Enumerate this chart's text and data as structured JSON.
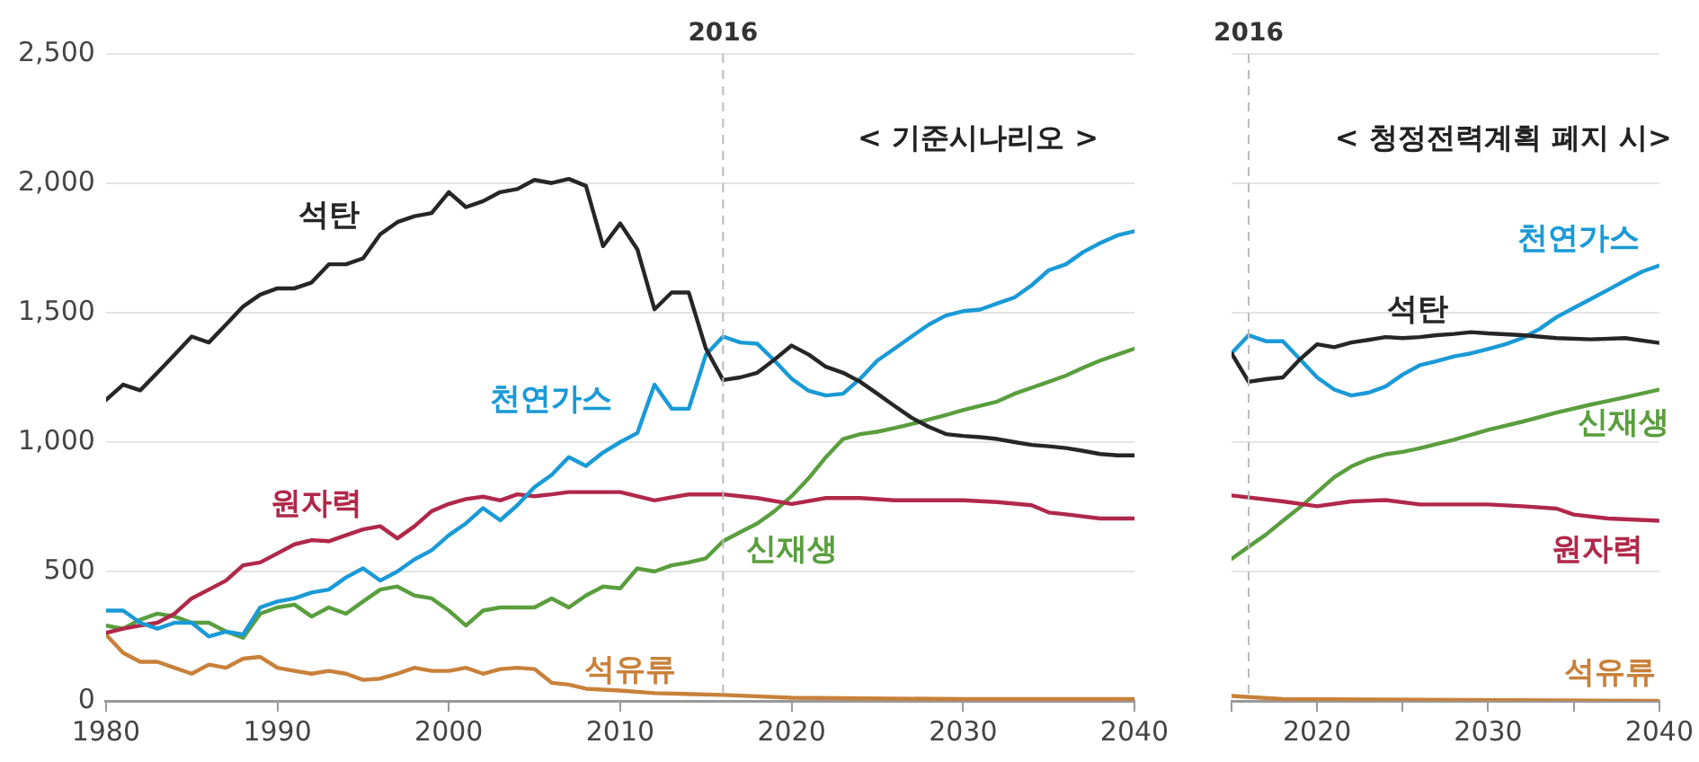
{
  "chart_data": [
    {
      "type": "line",
      "title": "< 기준시나리오 >",
      "marker": "none",
      "line_style": "solid",
      "grid": "y",
      "legend": false,
      "xlim": [
        1980,
        2040
      ],
      "xticks": [
        1980,
        1990,
        2000,
        2010,
        2020,
        2030,
        2040
      ],
      "ylim": [
        0,
        2500
      ],
      "yticks": [
        0,
        500,
        {
          "value": 1000,
          "label": "1,000"
        },
        {
          "value": 1500,
          "label": "1,500"
        },
        {
          "value": 2000,
          "label": "2,000"
        },
        {
          "value": 2500,
          "label": "2,500"
        }
      ],
      "ref_lines": [
        {
          "axis": "x",
          "value": 2016,
          "label": "2016",
          "color": "#bbbbbb",
          "line_style": "dashed"
        }
      ],
      "series": [
        {
          "name": "석탄",
          "color": "#262626",
          "x": [
            1980,
            1981,
            1982,
            1983,
            1984,
            1985,
            1986,
            1987,
            1988,
            1989,
            1990,
            1991,
            1992,
            1993,
            1994,
            1995,
            1996,
            1997,
            1998,
            1999,
            2000,
            2001,
            2002,
            2003,
            2004,
            2005,
            2006,
            2007,
            2008,
            2009,
            2010,
            2011,
            2012,
            2013,
            2014,
            2015,
            2016,
            2017,
            2018,
            2019,
            2020,
            2021,
            2022,
            2023,
            2024,
            2025,
            2026,
            2027,
            2028,
            2029,
            2030,
            2031,
            2032,
            2033,
            2034,
            2035,
            2036,
            2037,
            2038,
            2039,
            2040
          ],
          "values": [
            1163,
            1222,
            1200,
            1268,
            1338,
            1408,
            1385,
            1454,
            1524,
            1570,
            1594,
            1594,
            1617,
            1687,
            1687,
            1710,
            1803,
            1850,
            1873,
            1885,
            1966,
            1908,
            1931,
            1966,
            1978,
            2013,
            2001,
            2017,
            1990,
            1757,
            1845,
            1745,
            1513,
            1578,
            1578,
            1361,
            1240,
            1250,
            1268,
            1319,
            1373,
            1338,
            1291,
            1268,
            1233,
            1187,
            1140,
            1094,
            1059,
            1031,
            1024,
            1019,
            1012,
            1000,
            989,
            984,
            977,
            966,
            954,
            949,
            949
          ]
        },
        {
          "name": "천연가스",
          "color": "#1a9ad6",
          "x": [
            1980,
            1981,
            1982,
            1983,
            1984,
            1985,
            1986,
            1987,
            1988,
            1989,
            1990,
            1991,
            1992,
            1993,
            1994,
            1995,
            1996,
            1997,
            1998,
            1999,
            2000,
            2001,
            2002,
            2003,
            2004,
            2005,
            2006,
            2007,
            2008,
            2009,
            2010,
            2011,
            2012,
            2013,
            2014,
            2015,
            2016,
            2017,
            2018,
            2019,
            2020,
            2021,
            2022,
            2023,
            2024,
            2025,
            2026,
            2027,
            2028,
            2029,
            2030,
            2031,
            2032,
            2033,
            2034,
            2035,
            2036,
            2037,
            2038,
            2039,
            2040
          ],
          "values": [
            349,
            349,
            302,
            279,
            302,
            302,
            249,
            268,
            256,
            361,
            384,
            396,
            419,
            430,
            477,
            512,
            465,
            500,
            547,
            582,
            640,
            686,
            745,
            698,
            756,
            826,
            873,
            942,
            908,
            960,
            1000,
            1035,
            1222,
            1129,
            1129,
            1338,
            1408,
            1385,
            1380,
            1315,
            1245,
            1198,
            1180,
            1187,
            1245,
            1315,
            1361,
            1408,
            1454,
            1489,
            1506,
            1512,
            1536,
            1559,
            1606,
            1664,
            1687,
            1734,
            1769,
            1799,
            1815
          ]
        },
        {
          "name": "원자력",
          "color": "#b0284a",
          "x": [
            1980,
            1981,
            1982,
            1983,
            1984,
            1985,
            1986,
            1987,
            1988,
            1989,
            1990,
            1991,
            1992,
            1993,
            1994,
            1995,
            1996,
            1997,
            1998,
            1999,
            2000,
            2001,
            2002,
            2003,
            2004,
            2005,
            2006,
            2007,
            2008,
            2010,
            2012,
            2014,
            2016,
            2018,
            2020,
            2022,
            2024,
            2026,
            2028,
            2030,
            2032,
            2034,
            2035,
            2036,
            2038,
            2040
          ],
          "values": [
            263,
            279,
            291,
            302,
            337,
            396,
            430,
            465,
            524,
            535,
            570,
            605,
            621,
            617,
            640,
            663,
            675,
            628,
            675,
            733,
            761,
            780,
            789,
            775,
            798,
            791,
            798,
            807,
            807,
            807,
            775,
            798,
            798,
            784,
            761,
            784,
            784,
            775,
            775,
            775,
            768,
            756,
            728,
            721,
            705,
            705
          ]
        },
        {
          "name": "신재생",
          "color": "#5a9e3e",
          "x": [
            1980,
            1981,
            1982,
            1983,
            1984,
            1985,
            1986,
            1987,
            1988,
            1989,
            1990,
            1991,
            1992,
            1993,
            1994,
            1995,
            1996,
            1997,
            1998,
            1999,
            2000,
            2001,
            2002,
            2003,
            2004,
            2005,
            2006,
            2007,
            2008,
            2009,
            2010,
            2011,
            2012,
            2013,
            2014,
            2015,
            2016,
            2017,
            2018,
            2019,
            2020,
            2021,
            2022,
            2023,
            2024,
            2025,
            2026,
            2027,
            2028,
            2029,
            2030,
            2031,
            2032,
            2033,
            2034,
            2035,
            2036,
            2037,
            2038,
            2039,
            2040
          ],
          "values": [
            291,
            279,
            314,
            337,
            326,
            302,
            302,
            268,
            244,
            337,
            361,
            372,
            326,
            361,
            337,
            384,
            430,
            442,
            407,
            396,
            349,
            291,
            349,
            361,
            361,
            361,
            396,
            361,
            407,
            442,
            435,
            512,
            500,
            524,
            535,
            551,
            617,
            652,
            686,
            733,
            791,
            861,
            942,
            1012,
            1031,
            1040,
            1054,
            1070,
            1087,
            1105,
            1124,
            1140,
            1157,
            1187,
            1210,
            1233,
            1257,
            1287,
            1315,
            1338,
            1361
          ]
        },
        {
          "name": "석유류",
          "color": "#c8813a",
          "x": [
            1980,
            1981,
            1982,
            1983,
            1984,
            1985,
            1986,
            1987,
            1988,
            1989,
            1990,
            1991,
            1992,
            1993,
            1994,
            1995,
            1996,
            1997,
            1998,
            1999,
            2000,
            2001,
            2002,
            2003,
            2004,
            2005,
            2006,
            2007,
            2008,
            2010,
            2012,
            2016,
            2020,
            2030,
            2040
          ],
          "values": [
            256,
            186,
            151,
            151,
            128,
            105,
            140,
            128,
            163,
            170,
            128,
            116,
            105,
            116,
            105,
            81,
            86,
            105,
            128,
            116,
            116,
            128,
            105,
            123,
            128,
            123,
            70,
            63,
            47,
            40,
            30,
            23,
            12,
            7,
            7
          ]
        }
      ]
    },
    {
      "type": "line",
      "title": "< 청정전력계획 폐지 시>",
      "marker": "none",
      "line_style": "solid",
      "grid": "y",
      "legend": false,
      "tick_labels": "x",
      "xlim": [
        2015,
        2040
      ],
      "xticks": [
        {
          "value": 2015,
          "label": null
        },
        2020,
        {
          "value": 2025,
          "label": null
        },
        2030,
        {
          "value": 2035,
          "label": null
        },
        2040
      ],
      "ylim": [
        0,
        2500
      ],
      "yticks": [
        0,
        500,
        1000,
        1500,
        2000,
        2500
      ],
      "ref_lines": [
        {
          "axis": "x",
          "value": 2016,
          "label": "2016",
          "color": "#bbbbbb",
          "line_style": "dashed"
        }
      ],
      "series": [
        {
          "name": "석탄",
          "color": "#262626",
          "x": [
            2015,
            2016,
            2017,
            2018,
            2019,
            2020,
            2021,
            2022,
            2023,
            2024,
            2025,
            2026,
            2027,
            2028,
            2029,
            2030,
            2032,
            2034,
            2036,
            2038,
            2040
          ],
          "values": [
            1343,
            1233,
            1243,
            1250,
            1320,
            1378,
            1367,
            1385,
            1395,
            1406,
            1402,
            1406,
            1413,
            1418,
            1425,
            1420,
            1413,
            1402,
            1397,
            1402,
            1383
          ]
        },
        {
          "name": "천연가스",
          "color": "#1a9ad6",
          "x": [
            2015,
            2016,
            2017,
            2018,
            2019,
            2020,
            2021,
            2022,
            2023,
            2024,
            2025,
            2026,
            2027,
            2028,
            2029,
            2030,
            2031,
            2032,
            2033,
            2034,
            2035,
            2036,
            2037,
            2038,
            2039,
            2040
          ],
          "values": [
            1343,
            1413,
            1390,
            1390,
            1320,
            1250,
            1203,
            1180,
            1191,
            1215,
            1261,
            1297,
            1313,
            1331,
            1343,
            1360,
            1378,
            1402,
            1437,
            1483,
            1518,
            1553,
            1588,
            1624,
            1659,
            1682
          ]
        },
        {
          "name": "원자력",
          "color": "#b0284a",
          "x": [
            2015,
            2018,
            2020,
            2022,
            2024,
            2026,
            2028,
            2030,
            2032,
            2034,
            2035,
            2037,
            2040
          ],
          "values": [
            794,
            771,
            752,
            771,
            776,
            759,
            759,
            759,
            752,
            743,
            720,
            705,
            696
          ]
        },
        {
          "name": "신재생",
          "color": "#5a9e3e",
          "x": [
            2015,
            2016,
            2017,
            2018,
            2019,
            2020,
            2021,
            2022,
            2023,
            2024,
            2025,
            2026,
            2027,
            2028,
            2029,
            2030,
            2032,
            2034,
            2036,
            2038,
            2040
          ],
          "values": [
            549,
            596,
            642,
            696,
            748,
            806,
            864,
            906,
            934,
            953,
            962,
            976,
            993,
            1009,
            1028,
            1047,
            1079,
            1114,
            1145,
            1173,
            1203
          ]
        },
        {
          "name": "석유류",
          "color": "#c8813a",
          "x": [
            2015,
            2018,
            2040
          ],
          "values": [
            19,
            7,
            0
          ]
        }
      ]
    }
  ]
}
